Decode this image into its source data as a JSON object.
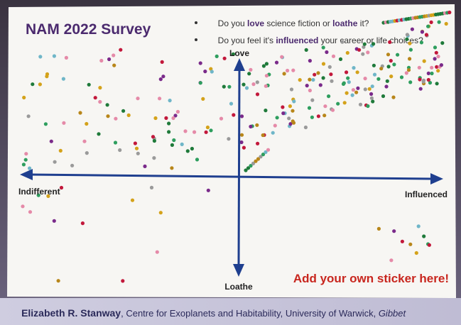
{
  "header": {
    "title": "NAM 2022 Survey",
    "questions": [
      {
        "parts": [
          "Do you ",
          "love",
          " science fiction or ",
          "loathe",
          " it?"
        ]
      },
      {
        "parts": [
          "Do you feel it's ",
          "influenced",
          " your career or life choices?"
        ]
      }
    ]
  },
  "axes": {
    "top": "Love",
    "bottom": "Loathe",
    "left": "Indifferent",
    "right": "Influenced"
  },
  "call_to_action": "Add your own sticker here!",
  "footer": {
    "name": "Elizabeth R. Stanway",
    "affiliation": ", Centre for Exoplanets and Habitability, University of Warwick, ",
    "place": "Gibbet"
  }
}
